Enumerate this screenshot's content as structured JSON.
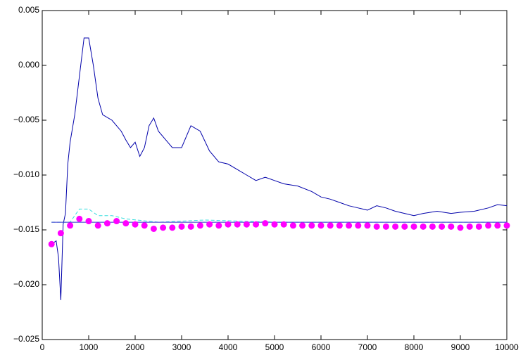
{
  "chart_data": {
    "type": "line",
    "xlim": [
      0,
      10000
    ],
    "xticks": [
      0,
      1000,
      2000,
      3000,
      4000,
      5000,
      6000,
      7000,
      8000,
      9000,
      10000
    ],
    "ylim": [
      -0.025,
      0.005
    ],
    "yticks": [
      {
        "value": -0.025,
        "label": "−0.025"
      },
      {
        "value": -0.02,
        "label": "−0.020"
      },
      {
        "value": -0.015,
        "label": "−0.015"
      },
      {
        "value": -0.01,
        "label": "−0.010"
      },
      {
        "value": -0.005,
        "label": "−0.005"
      },
      {
        "value": 0,
        "label": "0.000"
      },
      0.005
    ],
    "grid": false,
    "series": [
      {
        "color": "#0000aa",
        "style": "solid",
        "x": [
          200,
          300,
          350,
          400,
          450,
          500,
          550,
          600,
          700,
          800,
          900,
          1000,
          1100,
          1200,
          1300,
          1500,
          1700,
          1800,
          1900,
          2000,
          2100,
          2200,
          2300,
          2400,
          2500,
          2700,
          2800,
          3000,
          3200,
          3400,
          3600,
          3800,
          4000,
          4200,
          4400,
          4600,
          4800,
          5000,
          5200,
          5500,
          5800,
          6000,
          6200,
          6400,
          6600,
          6800,
          7000,
          7200,
          7400,
          7600,
          7800,
          8000,
          8200,
          8500,
          8800,
          9000,
          9300,
          9600,
          9800,
          10000
        ],
        "values": [
          -0.0163,
          -0.016,
          -0.0175,
          -0.0214,
          -0.0145,
          -0.0135,
          -0.009,
          -0.007,
          -0.0045,
          -0.001,
          0.0025,
          0.0025,
          0.0,
          -0.003,
          -0.0045,
          -0.005,
          -0.006,
          -0.0068,
          -0.0075,
          -0.007,
          -0.0083,
          -0.0075,
          -0.0055,
          -0.0048,
          -0.006,
          -0.007,
          -0.0075,
          -0.0075,
          -0.0055,
          -0.006,
          -0.0078,
          -0.0088,
          -0.009,
          -0.0095,
          -0.01,
          -0.0105,
          -0.0102,
          -0.0105,
          -0.0108,
          -0.011,
          -0.0115,
          -0.012,
          -0.0122,
          -0.0125,
          -0.0128,
          -0.013,
          -0.0132,
          -0.0128,
          -0.013,
          -0.0133,
          -0.0135,
          -0.0137,
          -0.0135,
          -0.0133,
          -0.0135,
          -0.0134,
          -0.0133,
          -0.013,
          -0.0127,
          -0.0128
        ]
      },
      {
        "color": "#33dddd",
        "style": "dashed",
        "x": [
          200,
          600,
          800,
          1000,
          1200,
          1500,
          1800,
          2500,
          3500,
          5000,
          10000
        ],
        "values": [
          -0.0143,
          -0.0143,
          -0.0131,
          -0.0131,
          -0.0137,
          -0.0137,
          -0.014,
          -0.0143,
          -0.0141,
          -0.0143,
          -0.0143
        ]
      },
      {
        "color": "#3333cc",
        "style": "solid",
        "x": [
          200,
          10000
        ],
        "values": [
          -0.0143,
          -0.0143
        ]
      },
      {
        "color": "#ff00ff",
        "style": "markers",
        "x": [
          200,
          400,
          600,
          800,
          1000,
          1200,
          1400,
          1600,
          1800,
          2000,
          2200,
          2400,
          2600,
          2800,
          3000,
          3200,
          3400,
          3600,
          3800,
          4000,
          4200,
          4400,
          4600,
          4800,
          5000,
          5200,
          5400,
          5600,
          5800,
          6000,
          6200,
          6400,
          6600,
          6800,
          7000,
          7200,
          7400,
          7600,
          7800,
          8000,
          8200,
          8400,
          8600,
          8800,
          9000,
          9200,
          9400,
          9600,
          9800,
          10000
        ],
        "values": [
          -0.0163,
          -0.0153,
          -0.0146,
          -0.014,
          -0.0142,
          -0.0146,
          -0.0144,
          -0.0142,
          -0.0144,
          -0.0145,
          -0.0146,
          -0.0149,
          -0.0148,
          -0.0148,
          -0.0147,
          -0.0147,
          -0.0146,
          -0.0145,
          -0.0146,
          -0.0145,
          -0.0145,
          -0.0145,
          -0.0145,
          -0.0144,
          -0.0145,
          -0.0145,
          -0.0146,
          -0.0146,
          -0.0146,
          -0.0146,
          -0.0146,
          -0.0146,
          -0.0146,
          -0.0146,
          -0.0146,
          -0.0147,
          -0.0147,
          -0.0147,
          -0.0147,
          -0.0147,
          -0.0147,
          -0.0147,
          -0.0147,
          -0.0147,
          -0.0148,
          -0.0147,
          -0.0147,
          -0.0146,
          -0.0146,
          -0.0146
        ]
      }
    ]
  }
}
